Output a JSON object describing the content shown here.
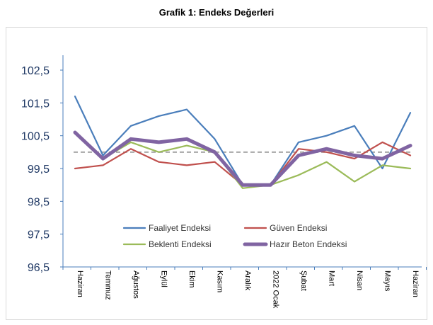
{
  "chart_data": {
    "type": "line",
    "title": "Grafik 1: Endeks Değerleri",
    "categories": [
      "Haziran",
      "Temmuz",
      "Ağustos",
      "Eylül",
      "Ekim",
      "Kasım",
      "Aralık",
      "2022 Ocak",
      "Şubat",
      "Mart",
      "Nisan",
      "Mayıs",
      "Haziran"
    ],
    "ylim": [
      96.5,
      103.5
    ],
    "yticks": [
      96.5,
      97.5,
      98.5,
      99.5,
      100.5,
      101.5,
      102.5
    ],
    "ytick_labels": [
      "96,5",
      "97,5",
      "98,5",
      "99,5",
      "100,5",
      "101,5",
      "102,5"
    ],
    "reference_line": {
      "value": 100,
      "style": "dashed",
      "color": "#a6a6a6"
    },
    "legend_position": "bottom-center-inside",
    "grid": false,
    "series": [
      {
        "name": "Faaliyet Endeksi",
        "color": "#4a7ebb",
        "width": 2.2,
        "values": [
          101.7,
          99.9,
          100.8,
          101.1,
          101.3,
          100.4,
          99.0,
          99.0,
          100.3,
          100.5,
          100.8,
          99.5,
          101.2
        ]
      },
      {
        "name": "Güven Endeksi",
        "color": "#c0504d",
        "width": 2.2,
        "values": [
          99.5,
          99.6,
          100.1,
          99.7,
          99.6,
          99.7,
          99.0,
          99.0,
          100.1,
          100.0,
          99.8,
          100.3,
          99.9
        ]
      },
      {
        "name": "Beklenti Endeksi",
        "color": "#9bbb59",
        "width": 2.2,
        "values": [
          100.6,
          99.8,
          100.3,
          100.0,
          100.2,
          100.0,
          98.9,
          99.0,
          99.3,
          99.7,
          99.1,
          99.6,
          99.5
        ]
      },
      {
        "name": "Hazır Beton Endeksi",
        "color": "#8064a2",
        "width": 5,
        "values": [
          100.6,
          99.8,
          100.4,
          100.3,
          100.4,
          100.0,
          99.0,
          99.0,
          99.9,
          100.1,
          99.9,
          99.8,
          100.2
        ]
      }
    ]
  }
}
